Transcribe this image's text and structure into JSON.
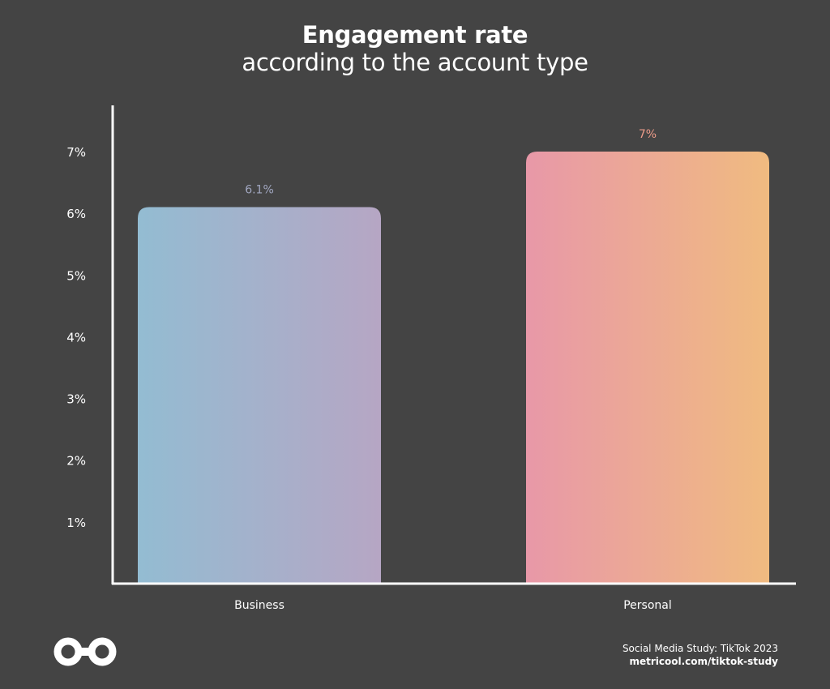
{
  "chart_data": {
    "type": "bar",
    "title": "Engagement rate",
    "subtitle": "according to the account type",
    "categories": [
      "Business",
      "Personal"
    ],
    "values": [
      6.1,
      7
    ],
    "data_labels": [
      "6.1%",
      "7%"
    ],
    "yticks": [
      1,
      2,
      3,
      4,
      5,
      6,
      7
    ],
    "ytick_labels": [
      "1%",
      "2%",
      "3%",
      "4%",
      "5%",
      "6%",
      "7%"
    ],
    "ylim": [
      0,
      7.7
    ],
    "grid": false,
    "legend": "none",
    "bar_gradients": [
      [
        "#93bcd2",
        "#b6a6c4"
      ],
      [
        "#e898a8",
        "#f0bb80"
      ]
    ],
    "data_label_colors": [
      "#a2a8c2",
      "#ed9c8a"
    ],
    "axis_color": "#ffffff"
  },
  "footer": {
    "source": "Social Media Study: TikTok 2023",
    "url": "metricool.com/tiktok-study"
  },
  "logo": {
    "icon": "metricool-infinity-icon"
  }
}
